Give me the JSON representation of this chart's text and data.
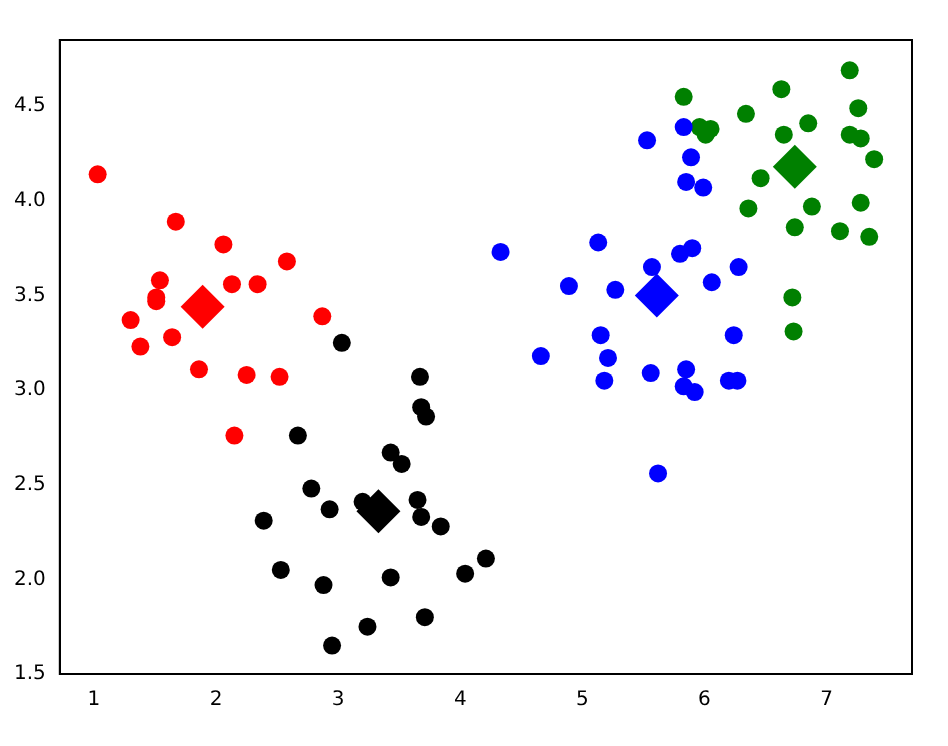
{
  "chart_data": {
    "type": "scatter",
    "xlim": [
      0.72,
      7.7
    ],
    "ylim": [
      1.5,
      4.85
    ],
    "xticks": [
      1,
      2,
      3,
      4,
      5,
      6,
      7
    ],
    "yticks": [
      1.5,
      {
        "value": 2,
        "label": "2.0"
      },
      2.5,
      {
        "value": 3,
        "label": "3.0"
      },
      3.5,
      {
        "value": 4,
        "label": "4.0"
      },
      4.5
    ],
    "grid": false,
    "legend": false,
    "marker": "circle",
    "series": [
      {
        "color": "#ff0000",
        "x": [
          1.03,
          1.67,
          2.06,
          2.58,
          1.54,
          1.51,
          1.51,
          2.13,
          2.34,
          1.3,
          2.87,
          1.38,
          1.64,
          1.86,
          2.25,
          2.52,
          2.15
        ],
        "values": [
          4.14,
          3.89,
          3.77,
          3.68,
          3.58,
          3.49,
          3.47,
          3.56,
          3.56,
          3.37,
          3.39,
          3.23,
          3.28,
          3.11,
          3.08,
          3.07,
          2.76
        ]
      },
      {
        "color": "#000000",
        "x": [
          3.03,
          3.67,
          3.68,
          3.72,
          2.67,
          3.43,
          3.52,
          2.78,
          2.93,
          3.2,
          3.65,
          3.68,
          3.84,
          2.39,
          4.21,
          4.04,
          2.53,
          2.88,
          3.43,
          3.71,
          3.24,
          2.95
        ],
        "values": [
          3.25,
          3.07,
          2.91,
          2.86,
          2.76,
          2.67,
          2.61,
          2.48,
          2.37,
          2.41,
          2.42,
          2.33,
          2.28,
          2.31,
          2.11,
          2.03,
          2.05,
          1.97,
          2.01,
          1.8,
          1.75,
          1.65
        ]
      },
      {
        "color": "#0000ff",
        "x": [
          5.53,
          5.83,
          5.89,
          5.85,
          5.99,
          4.33,
          5.13,
          5.8,
          5.9,
          5.57,
          6.28,
          4.89,
          5.27,
          6.06,
          5.15,
          6.24,
          4.66,
          5.21,
          5.18,
          5.56,
          5.85,
          5.83,
          5.92,
          6.2,
          6.27,
          5.62
        ],
        "values": [
          4.32,
          4.39,
          4.23,
          4.1,
          4.07,
          3.73,
          3.78,
          3.72,
          3.75,
          3.65,
          3.65,
          3.55,
          3.53,
          3.57,
          3.29,
          3.29,
          3.18,
          3.17,
          3.05,
          3.09,
          3.11,
          3.02,
          2.99,
          3.05,
          3.05,
          2.56
        ]
      },
      {
        "color": "#008000",
        "x": [
          7.19,
          5.83,
          6.63,
          7.26,
          6.34,
          5.96,
          6.05,
          6.01,
          6.65,
          6.85,
          7.19,
          7.28,
          7.39,
          6.46,
          6.36,
          6.88,
          6.74,
          7.28,
          7.11,
          7.35,
          6.72,
          6.73
        ],
        "values": [
          4.69,
          4.55,
          4.59,
          4.49,
          4.46,
          4.39,
          4.38,
          4.35,
          4.35,
          4.41,
          4.35,
          4.33,
          4.22,
          4.12,
          3.96,
          3.97,
          3.86,
          3.99,
          3.84,
          3.81,
          3.49,
          3.31
        ]
      },
      {
        "marker": "diamond",
        "colors": [
          "#ff0000",
          "#000000",
          "#0000ff",
          "#008000"
        ],
        "x": [
          1.89,
          3.33,
          5.61,
          6.74
        ],
        "values": [
          3.44,
          2.36,
          3.5,
          4.18
        ]
      }
    ]
  }
}
